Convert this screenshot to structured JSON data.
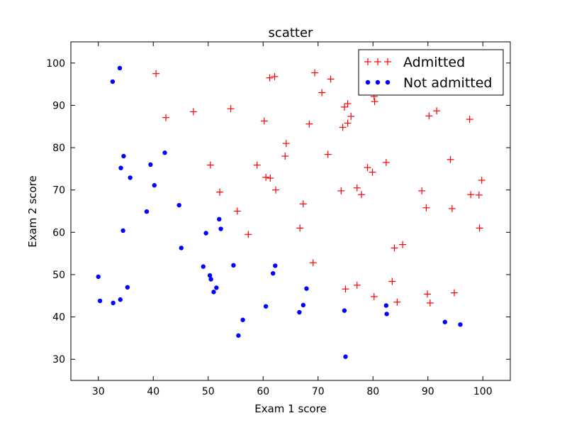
{
  "chart_data": {
    "type": "scatter",
    "title": "scatter",
    "xlabel": "Exam 1 score",
    "ylabel": "Exam 2 score",
    "xlim": [
      25,
      105
    ],
    "ylim": [
      25,
      105
    ],
    "xticks": [
      "30",
      "40",
      "50",
      "60",
      "70",
      "80",
      "90",
      "100"
    ],
    "yticks": [
      "30",
      "40",
      "50",
      "60",
      "70",
      "80",
      "90",
      "100"
    ],
    "grid": false,
    "legend_position": "top-right",
    "series": [
      {
        "name": "Admitted",
        "marker": "plus",
        "color": "#ff0000",
        "points": [
          [
            40.5,
            97.5
          ],
          [
            42.3,
            87.1
          ],
          [
            47.3,
            88.5
          ],
          [
            50.4,
            75.9
          ],
          [
            52.1,
            69.5
          ],
          [
            54.1,
            89.2
          ],
          [
            55.3,
            65.0
          ],
          [
            57.3,
            59.5
          ],
          [
            58.9,
            75.9
          ],
          [
            60.2,
            86.3
          ],
          [
            60.5,
            73.0
          ],
          [
            61.2,
            96.5
          ],
          [
            61.3,
            72.8
          ],
          [
            62.1,
            96.8
          ],
          [
            62.3,
            70.0
          ],
          [
            64.0,
            78.0
          ],
          [
            64.2,
            81.0
          ],
          [
            66.7,
            61.0
          ],
          [
            67.3,
            66.7
          ],
          [
            68.4,
            85.6
          ],
          [
            69.1,
            52.8
          ],
          [
            69.4,
            97.7
          ],
          [
            70.7,
            93.0
          ],
          [
            71.8,
            78.4
          ],
          [
            72.3,
            96.2
          ],
          [
            74.2,
            69.8
          ],
          [
            74.5,
            84.8
          ],
          [
            74.8,
            89.6
          ],
          [
            75.0,
            46.6
          ],
          [
            75.4,
            85.8
          ],
          [
            75.4,
            90.4
          ],
          [
            76.0,
            87.4
          ],
          [
            77.1,
            70.5
          ],
          [
            77.1,
            47.5
          ],
          [
            77.9,
            68.9
          ],
          [
            79.0,
            75.3
          ],
          [
            79.9,
            74.2
          ],
          [
            80.2,
            44.8
          ],
          [
            80.2,
            92.1
          ],
          [
            80.3,
            90.9
          ],
          [
            82.4,
            76.5
          ],
          [
            83.5,
            48.4
          ],
          [
            83.9,
            56.3
          ],
          [
            84.4,
            43.5
          ],
          [
            85.4,
            57.1
          ],
          [
            88.9,
            69.8
          ],
          [
            89.7,
            65.8
          ],
          [
            89.9,
            45.4
          ],
          [
            90.2,
            87.5
          ],
          [
            90.4,
            43.3
          ],
          [
            91.6,
            88.7
          ],
          [
            94.1,
            77.2
          ],
          [
            94.4,
            65.6
          ],
          [
            94.8,
            45.7
          ],
          [
            97.6,
            86.7
          ],
          [
            97.8,
            68.9
          ],
          [
            99.3,
            68.8
          ],
          [
            99.4,
            61.0
          ],
          [
            99.8,
            72.3
          ]
        ]
      },
      {
        "name": "Not admitted",
        "marker": "circle",
        "color": "#0000ff",
        "points": [
          [
            30.0,
            49.5
          ],
          [
            30.3,
            43.8
          ],
          [
            32.6,
            95.6
          ],
          [
            32.7,
            43.3
          ],
          [
            33.9,
            98.8
          ],
          [
            34.0,
            44.1
          ],
          [
            34.1,
            75.2
          ],
          [
            34.5,
            60.4
          ],
          [
            34.6,
            78.0
          ],
          [
            35.3,
            47.0
          ],
          [
            35.8,
            72.9
          ],
          [
            38.8,
            64.9
          ],
          [
            39.5,
            76.0
          ],
          [
            40.2,
            71.1
          ],
          [
            42.1,
            78.8
          ],
          [
            44.7,
            66.4
          ],
          [
            45.1,
            56.3
          ],
          [
            49.1,
            51.9
          ],
          [
            49.6,
            59.8
          ],
          [
            50.3,
            49.8
          ],
          [
            50.5,
            48.9
          ],
          [
            51.0,
            45.9
          ],
          [
            51.5,
            46.9
          ],
          [
            52.0,
            63.1
          ],
          [
            52.3,
            60.8
          ],
          [
            54.6,
            52.2
          ],
          [
            55.5,
            35.6
          ],
          [
            56.3,
            39.3
          ],
          [
            60.5,
            42.5
          ],
          [
            61.8,
            50.3
          ],
          [
            62.2,
            52.1
          ],
          [
            66.6,
            41.1
          ],
          [
            67.3,
            42.8
          ],
          [
            67.9,
            46.7
          ],
          [
            74.8,
            41.5
          ],
          [
            75.0,
            30.6
          ],
          [
            82.4,
            42.7
          ],
          [
            82.5,
            40.7
          ],
          [
            93.1,
            38.8
          ],
          [
            95.9,
            38.2
          ]
        ]
      }
    ]
  }
}
